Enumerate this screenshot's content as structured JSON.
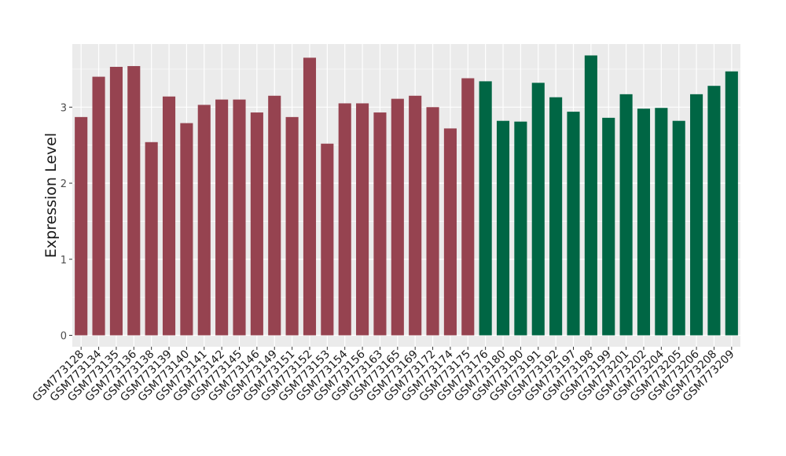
{
  "chart_data": {
    "type": "bar",
    "xlabel": "",
    "ylabel": "Expression Level",
    "ylim": [
      -0.15,
      3.83
    ],
    "yticks": [
      0,
      1,
      2,
      3
    ],
    "grid": true,
    "colors": {
      "group1": "#964350",
      "group2": "#006644",
      "panel": "#ebebeb",
      "grid": "#ffffff"
    },
    "categories": [
      "GSM773128",
      "GSM773134",
      "GSM773135",
      "GSM773136",
      "GSM773138",
      "GSM773139",
      "GSM773140",
      "GSM773141",
      "GSM773142",
      "GSM773145",
      "GSM773146",
      "GSM773149",
      "GSM773151",
      "GSM773152",
      "GSM773153",
      "GSM773154",
      "GSM773156",
      "GSM773163",
      "GSM773165",
      "GSM773169",
      "GSM773172",
      "GSM773174",
      "GSM773175",
      "GSM773176",
      "GSM773180",
      "GSM773190",
      "GSM773191",
      "GSM773192",
      "GSM773197",
      "GSM773198",
      "GSM773199",
      "GSM773201",
      "GSM773202",
      "GSM773204",
      "GSM773205",
      "GSM773206",
      "GSM773208",
      "GSM773209"
    ],
    "values": [
      2.87,
      3.4,
      3.53,
      3.54,
      2.54,
      3.14,
      2.79,
      3.03,
      3.1,
      3.1,
      2.93,
      3.15,
      2.87,
      3.65,
      2.52,
      3.05,
      3.05,
      2.93,
      3.11,
      3.15,
      3.0,
      2.72,
      3.38,
      3.34,
      2.82,
      2.81,
      3.32,
      3.13,
      2.94,
      3.68,
      2.86,
      3.17,
      2.98,
      2.99,
      2.82,
      3.17,
      3.28,
      3.47
    ],
    "groups": [
      1,
      1,
      1,
      1,
      1,
      1,
      1,
      1,
      1,
      1,
      1,
      1,
      1,
      1,
      1,
      1,
      1,
      1,
      1,
      1,
      1,
      1,
      1,
      2,
      2,
      2,
      2,
      2,
      2,
      2,
      2,
      2,
      2,
      2,
      2,
      2,
      2,
      2
    ]
  }
}
